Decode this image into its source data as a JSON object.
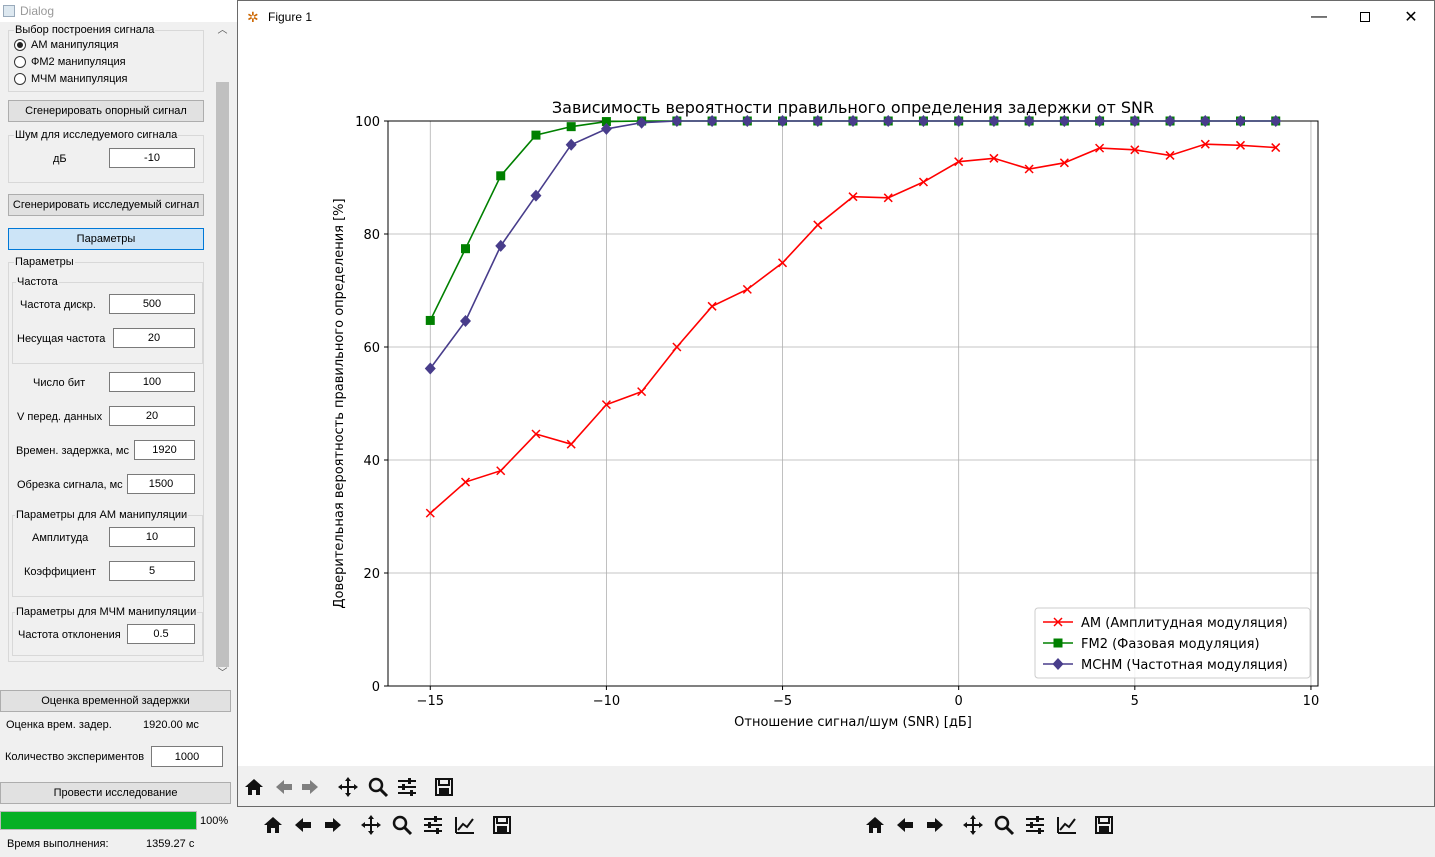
{
  "dialog": {
    "title": "Dialog",
    "signal_group": {
      "title": "Выбор построения сигнала",
      "options": [
        "АМ манипуляция",
        "ФМ2 манипуляция",
        "МЧМ манипуляция"
      ],
      "selected_index": 0
    },
    "gen_reference_button": "Сгенерировать опорный сигнал",
    "noise_group": {
      "title": "Шум для исследуемого сигнала",
      "label": "дБ",
      "value": "-10"
    },
    "gen_test_button": "Сгенерировать исследуемый сигнал",
    "params_button": "Параметры",
    "params_group": {
      "title": "Параметры",
      "freq_group_title": "Частота",
      "sample_rate_label": "Частота дискр.",
      "sample_rate_value": "500",
      "carrier_label": "Несущая частота",
      "carrier_value": "20",
      "bits_label": "Число бит",
      "bits_value": "100",
      "rate_label": "V перед. данных",
      "rate_value": "20",
      "delay_label": "Времен. задержка, мс",
      "delay_value": "1920",
      "cut_label": "Обрезка сигнала, мс",
      "cut_value": "1500",
      "am_group_title": "Параметры для АМ манипуляции",
      "amplitude_label": "Амплитуда",
      "amplitude_value": "10",
      "coef_label": "Коэффициент",
      "coef_value": "5",
      "fsk_group_title": "Параметры для МЧМ манипуляции",
      "deviation_label": "Частота отклонения",
      "deviation_value": "0.5"
    },
    "estimate_button": "Оценка временной задержки",
    "estimate_label": "Оценка врем. задер.",
    "estimate_value": "1920.00 мс",
    "experiments_label": "Количество экспериментов",
    "experiments_value": "1000",
    "run_button": "Провести исследование",
    "progress_percent": 100,
    "progress_text": "100%",
    "time_label": "Время выполнения:",
    "time_value": "1359.27 с"
  },
  "figure": {
    "title": "Figure 1",
    "colors": {
      "am": "#ff0000",
      "fm2": "#008000",
      "mchm": "#483d8b",
      "grid": "#b0b0b0"
    }
  },
  "chart_data": {
    "type": "line",
    "title": "Зависимость вероятности правильного определения задержки от SNR",
    "xlabel": "Отношение сигнал/шум (SNR) [дБ]",
    "ylabel": "Доверительная вероятность правильного определения [%]",
    "xlim": [
      -16.2,
      10.2
    ],
    "ylim": [
      0,
      100
    ],
    "xticks": [
      -15,
      -10,
      -5,
      0,
      5,
      10
    ],
    "xtick_labels": [
      "−15",
      "−10",
      "−5",
      "0",
      "5",
      "10"
    ],
    "yticks": [
      0,
      20,
      40,
      60,
      80,
      100
    ],
    "ytick_labels": [
      "0",
      "20",
      "40",
      "60",
      "80",
      "100"
    ],
    "grid": true,
    "legend_position": "lower-right",
    "series": [
      {
        "name": "AM (Амплитудная модуляция)",
        "color": "#ff0000",
        "marker": "x",
        "x": [
          -15,
          -14,
          -13,
          -12,
          -11,
          -10,
          -9,
          -8,
          -7,
          -6,
          -5,
          -4,
          -3,
          -2,
          -1,
          0,
          1,
          2,
          3,
          4,
          5,
          6,
          7,
          8,
          9
        ],
        "y": [
          30.6,
          36.1,
          38.1,
          44.6,
          42.8,
          49.8,
          52.1,
          60.0,
          67.2,
          70.2,
          74.9,
          81.6,
          86.6,
          86.4,
          89.2,
          92.8,
          93.4,
          91.5,
          92.6,
          95.2,
          94.9,
          93.9,
          95.9,
          95.7,
          95.3
        ]
      },
      {
        "name": "FM2 (Фазовая модуляция)",
        "color": "#008000",
        "marker": "s",
        "x": [
          -15,
          -14,
          -13,
          -12,
          -11,
          -10,
          -9,
          -8,
          -7,
          -6,
          -5,
          -4,
          -3,
          -2,
          -1,
          0,
          1,
          2,
          3,
          4,
          5,
          6,
          7,
          8,
          9
        ],
        "y": [
          64.7,
          77.4,
          90.3,
          97.5,
          99.0,
          99.9,
          100,
          100,
          100,
          100,
          100,
          100,
          100,
          100,
          100,
          100,
          100,
          100,
          100,
          100,
          100,
          100,
          100,
          100,
          100
        ]
      },
      {
        "name": "MCHM (Частотная модуляция)",
        "color": "#483d8b",
        "marker": "D",
        "x": [
          -15,
          -14,
          -13,
          -12,
          -11,
          -10,
          -9,
          -8,
          -7,
          -6,
          -5,
          -4,
          -3,
          -2,
          -1,
          0,
          1,
          2,
          3,
          4,
          5,
          6,
          7,
          8,
          9
        ],
        "y": [
          56.2,
          64.6,
          77.9,
          86.8,
          95.8,
          98.6,
          99.7,
          100,
          100,
          100,
          100,
          100,
          100,
          100,
          100,
          100,
          100,
          100,
          100,
          100,
          100,
          100,
          100,
          100,
          100
        ]
      }
    ]
  }
}
